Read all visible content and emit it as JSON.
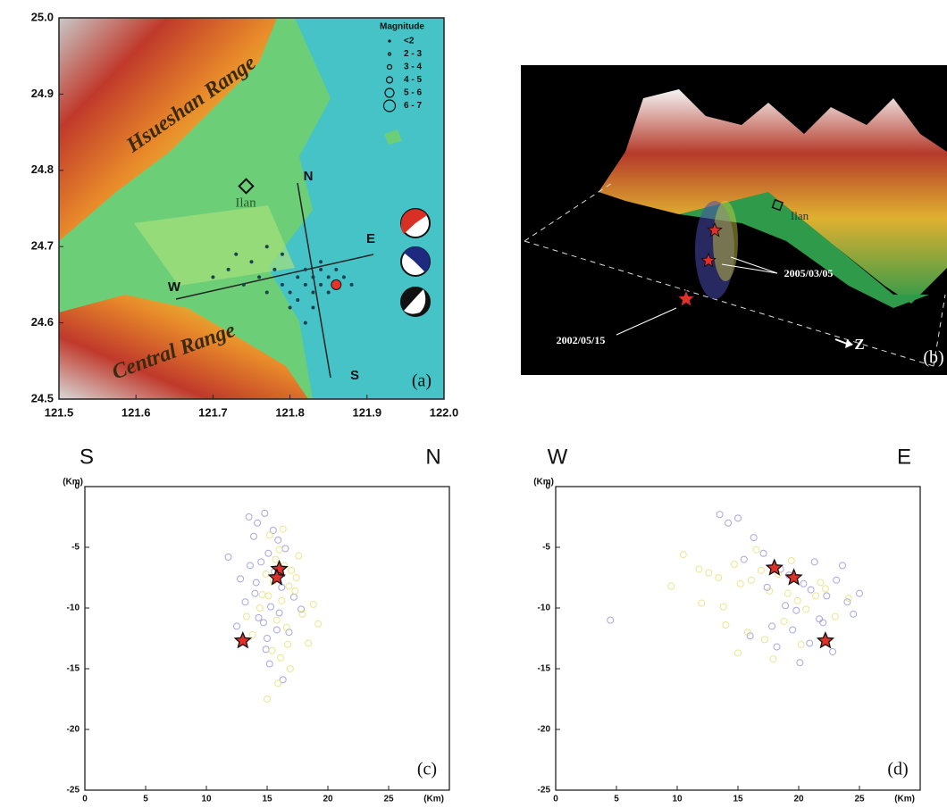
{
  "chart_data": [
    {
      "type": "map",
      "xlim": [
        121.5,
        122.0
      ],
      "ylim": [
        24.5,
        25.0
      ],
      "xticks": [
        121.5,
        121.6,
        121.7,
        121.8,
        121.9,
        {
          "value": 122.0,
          "label": "122.0"
        }
      ],
      "yticks": [
        24.5,
        24.6,
        24.7,
        24.8,
        24.9,
        {
          "value": 25.0,
          "label": "25.0"
        }
      ],
      "annotations": [
        "Hsueshan Range",
        "Ilan",
        "Central Range",
        "N",
        "S",
        "W",
        "E",
        "(a)"
      ],
      "legend_title": "Magnitude",
      "legend": [
        "<2",
        "2 - 3",
        "3 - 4",
        "4 - 5",
        "5 - 6",
        "6 - 7"
      ],
      "series": [
        {
          "color": "#1d4050",
          "marker": "dot",
          "x": [
            121.7,
            121.72,
            121.74,
            121.75,
            121.76,
            121.77,
            121.78,
            121.79,
            121.8,
            121.81,
            121.81,
            121.82,
            121.82,
            121.83,
            121.83,
            121.84,
            121.84,
            121.85,
            121.85,
            121.86,
            121.87,
            121.88,
            121.79,
            121.8,
            121.83,
            121.73,
            121.77,
            121.86,
            121.82,
            121.84
          ],
          "values": [
            24.66,
            24.67,
            24.65,
            24.68,
            24.66,
            24.64,
            24.67,
            24.65,
            24.64,
            24.66,
            24.63,
            24.65,
            24.67,
            24.64,
            24.66,
            24.65,
            24.67,
            24.64,
            24.66,
            24.65,
            24.66,
            24.65,
            24.69,
            24.62,
            24.62,
            24.69,
            24.7,
            24.67,
            24.6,
            24.68
          ]
        },
        {
          "color": "#e8322a",
          "marker": "big",
          "x": [
            121.86
          ],
          "values": [
            24.65
          ]
        }
      ]
    },
    {
      "type": "3d-view",
      "annotations": [
        "Ilan",
        "2005/03/05",
        "2002/05/15",
        "Z",
        "(b)"
      ]
    },
    {
      "type": "scatter",
      "end_labels": [
        "S",
        "N"
      ],
      "x_label": "(Km)",
      "y_label": "(Km)",
      "panel_label": "(c)",
      "xlim": [
        0,
        30
      ],
      "ylim": [
        -25,
        0
      ],
      "xticks": [
        0,
        5,
        10,
        15,
        20,
        25
      ],
      "yticks": [
        -25,
        -20,
        -15,
        -10,
        -5,
        0
      ],
      "series": [
        {
          "color": "#8a8ad8",
          "marker": "circle",
          "x": [
            13.5,
            14.2,
            14.8,
            13.9,
            15.1,
            14.5,
            15.6,
            16.2,
            14.0,
            13.2,
            15.3,
            16.0,
            14.7,
            15.8,
            12.8,
            16.5,
            14.3,
            15.0,
            17.2,
            13.6,
            15.5,
            14.9,
            16.8,
            12.5,
            15.9,
            14.1,
            11.8,
            17.8,
            15.2,
            16.3
          ],
          "values": [
            -2.5,
            -3.0,
            -2.2,
            -4.1,
            -5.5,
            -6.2,
            -7.0,
            -8.3,
            -8.8,
            -9.5,
            -9.9,
            -10.4,
            -11.2,
            -11.8,
            -7.6,
            -5.1,
            -10.8,
            -12.5,
            -9.1,
            -6.5,
            -3.6,
            -13.4,
            -12.0,
            -11.5,
            -4.4,
            -7.9,
            -5.8,
            -10.1,
            -14.6,
            -15.9
          ]
        },
        {
          "color": "#e6dc6a",
          "marker": "circle",
          "x": [
            15.2,
            16.0,
            15.7,
            16.4,
            14.9,
            15.5,
            16.8,
            17.3,
            15.1,
            16.2,
            14.4,
            17.9,
            15.8,
            16.6,
            13.8,
            18.4,
            15.4,
            16.1,
            17.0,
            14.6,
            19.2,
            16.9,
            15.9,
            13.3,
            17.6,
            16.3,
            18.8,
            15.0,
            16.7,
            17.4
          ],
          "values": [
            -4.0,
            -5.2,
            -6.0,
            -6.5,
            -7.2,
            -7.8,
            -8.2,
            -8.6,
            -9.0,
            -9.4,
            -10.0,
            -10.5,
            -11.0,
            -11.6,
            -12.2,
            -12.9,
            -13.5,
            -14.1,
            -6.9,
            -8.9,
            -11.3,
            -15.0,
            -16.2,
            -10.7,
            -5.7,
            -3.5,
            -9.7,
            -17.5,
            -13.0,
            -7.5
          ]
        },
        {
          "color": "#e0302a",
          "marker": "star",
          "x": [
            16.0,
            15.8,
            13.0
          ],
          "values": [
            -6.8,
            -7.5,
            -12.7
          ]
        }
      ]
    },
    {
      "type": "scatter",
      "end_labels": [
        "W",
        "E"
      ],
      "x_label": "(Km)",
      "y_label": "(Km)",
      "panel_label": "(d)",
      "xlim": [
        0,
        30
      ],
      "ylim": [
        -25,
        0
      ],
      "xticks": [
        0,
        5,
        10,
        15,
        20,
        25
      ],
      "yticks": [
        -25,
        -20,
        -15,
        -10,
        -5,
        0
      ],
      "series": [
        {
          "color": "#8a8ad8",
          "marker": "circle",
          "x": [
            13.5,
            14.2,
            15.0,
            16.3,
            17.1,
            18.5,
            19.2,
            20.4,
            21.0,
            22.3,
            23.1,
            24.0,
            19.8,
            21.7,
            17.8,
            16.0,
            20.9,
            22.8,
            18.9,
            23.6,
            25.0,
            15.5,
            19.5,
            21.3,
            17.4,
            22.0,
            24.5,
            20.1,
            18.2,
            4.5
          ],
          "values": [
            -2.3,
            -3.0,
            -2.6,
            -4.2,
            -5.5,
            -6.8,
            -7.3,
            -8.0,
            -8.5,
            -9.0,
            -7.7,
            -9.5,
            -10.2,
            -10.9,
            -11.5,
            -12.3,
            -12.9,
            -13.6,
            -9.8,
            -6.5,
            -8.8,
            -6.0,
            -11.8,
            -6.2,
            -8.3,
            -11.2,
            -10.5,
            -14.5,
            -13.2,
            -11.0
          ]
        },
        {
          "color": "#e6dc6a",
          "marker": "circle",
          "x": [
            10.5,
            11.8,
            12.6,
            13.4,
            14.7,
            15.2,
            16.1,
            16.9,
            17.6,
            18.3,
            19.1,
            19.9,
            20.6,
            21.4,
            22.2,
            23.0,
            14.0,
            15.8,
            17.2,
            18.8,
            20.2,
            12.0,
            9.5,
            16.5,
            19.4,
            21.8,
            13.8,
            24.1,
            17.9,
            15.0
          ],
          "values": [
            -5.6,
            -6.8,
            -7.1,
            -7.5,
            -6.4,
            -8.0,
            -7.7,
            -6.9,
            -8.6,
            -7.2,
            -8.8,
            -9.4,
            -10.1,
            -9.0,
            -8.4,
            -10.7,
            -11.4,
            -12.0,
            -12.6,
            -11.1,
            -13.0,
            -9.6,
            -8.2,
            -5.2,
            -6.1,
            -7.9,
            -9.9,
            -9.2,
            -14.2,
            -13.7
          ]
        },
        {
          "color": "#e0302a",
          "marker": "star",
          "x": [
            18.0,
            19.6,
            22.2
          ],
          "values": [
            -6.7,
            -7.5,
            -12.7
          ]
        }
      ]
    }
  ]
}
